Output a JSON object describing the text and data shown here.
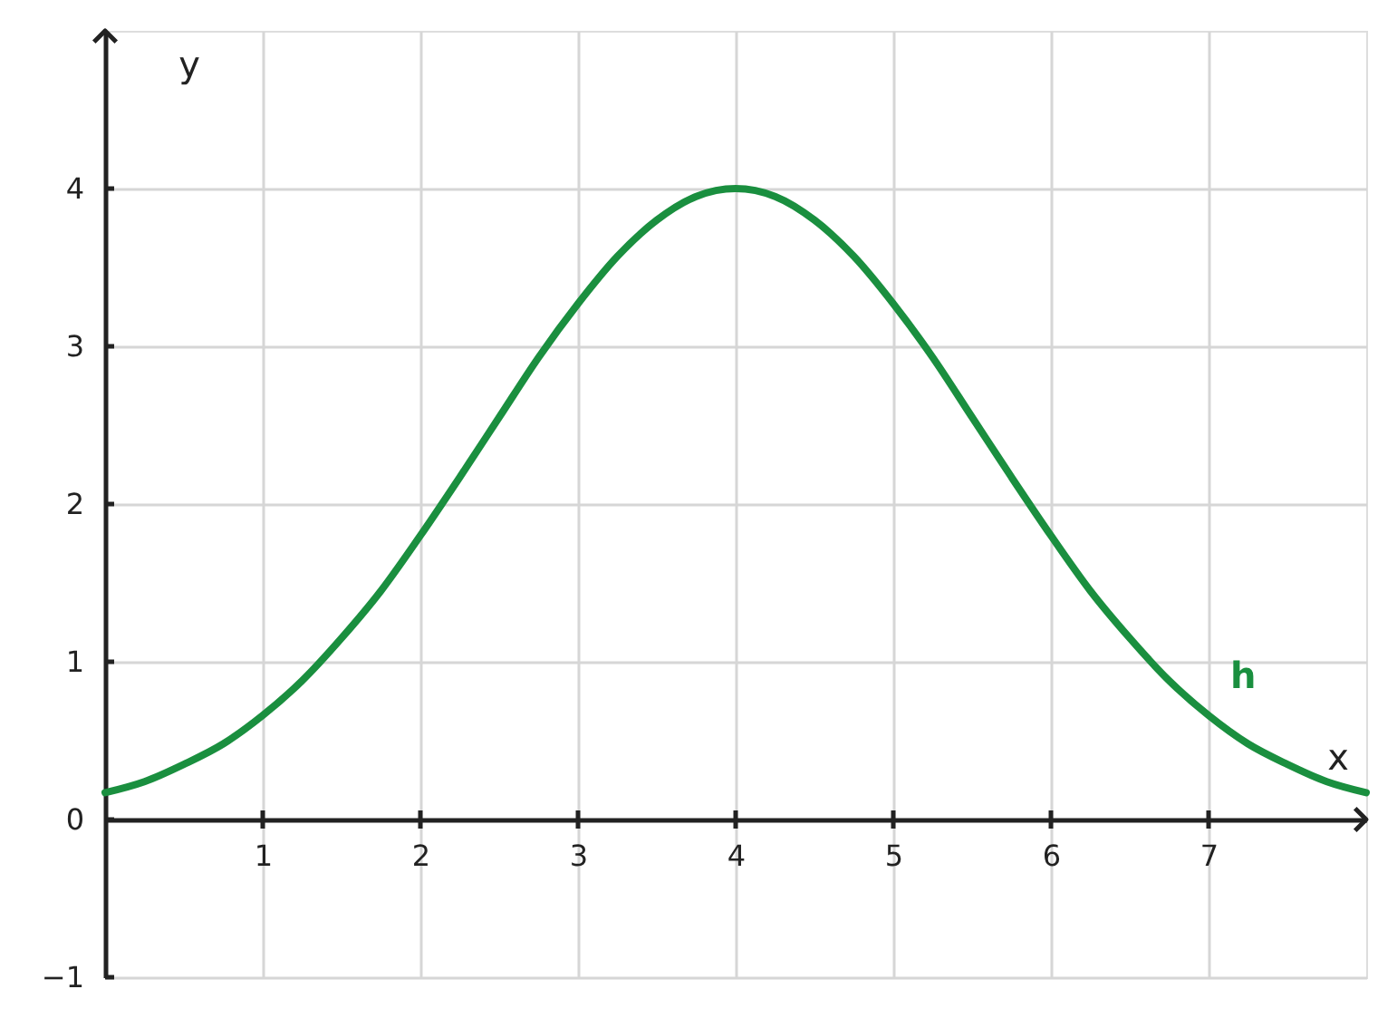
{
  "chart_data": {
    "type": "line",
    "xlabel": "x",
    "ylabel": "y",
    "xlim": [
      0,
      8
    ],
    "ylim": [
      -1,
      5
    ],
    "xticks": [
      1,
      2,
      3,
      4,
      5,
      6,
      7
    ],
    "yticks": [
      {
        "value": -1,
        "label": "−1"
      },
      0,
      1,
      2,
      3,
      4
    ],
    "grid": true,
    "line_style": "solid",
    "x": [
      0,
      0.25,
      0.5,
      0.75,
      1,
      1.25,
      1.5,
      1.75,
      2,
      2.25,
      2.5,
      2.75,
      3,
      3.25,
      3.5,
      3.75,
      4,
      4.25,
      4.5,
      4.75,
      5,
      5.25,
      5.5,
      5.75,
      6,
      6.25,
      6.5,
      6.75,
      7,
      7.25,
      7.5,
      7.75,
      8
    ],
    "series": [
      {
        "name": "h",
        "color": "#1a8f3f",
        "values": [
          0.17,
          0.24,
          0.35,
          0.48,
          0.66,
          0.88,
          1.15,
          1.45,
          1.8,
          2.17,
          2.55,
          2.93,
          3.27,
          3.57,
          3.8,
          3.95,
          4.0,
          3.95,
          3.8,
          3.57,
          3.27,
          2.93,
          2.55,
          2.17,
          1.8,
          1.45,
          1.15,
          0.88,
          0.66,
          0.48,
          0.35,
          0.24,
          0.17
        ]
      }
    ]
  }
}
